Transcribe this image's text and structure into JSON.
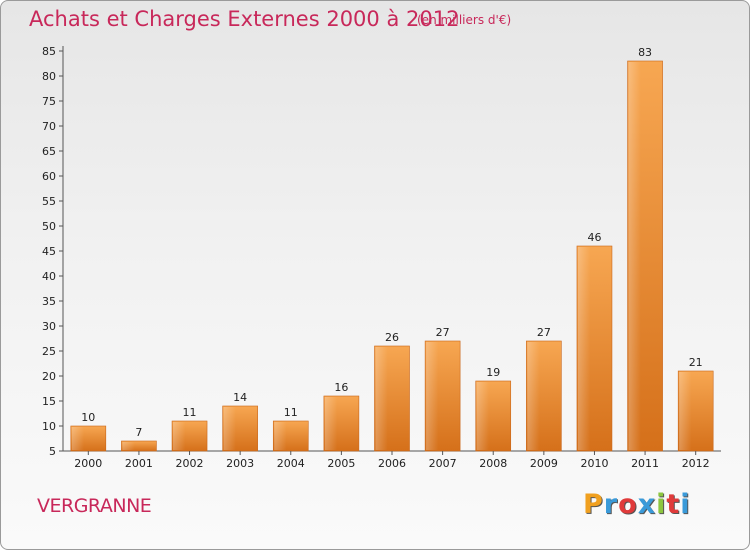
{
  "chart_data": {
    "type": "bar",
    "title": "Achats et Charges Externes 2000 à 2012",
    "unit_note": "(en milliers d'€)",
    "categories": [
      "2000",
      "2001",
      "2002",
      "2003",
      "2004",
      "2005",
      "2006",
      "2007",
      "2008",
      "2009",
      "2010",
      "2011",
      "2012"
    ],
    "values": [
      10,
      7,
      11,
      14,
      11,
      16,
      26,
      27,
      19,
      27,
      46,
      83,
      21
    ],
    "ylim": [
      5,
      85
    ],
    "yticks": [
      5,
      10,
      15,
      20,
      25,
      30,
      35,
      40,
      45,
      50,
      55,
      60,
      65,
      70,
      75,
      80,
      85
    ],
    "grid": false,
    "bar_color": "#e8862a"
  },
  "commune": "VERGRANNE",
  "logo": {
    "letters": [
      "P",
      "r",
      "o",
      "x",
      "i",
      "t",
      "i"
    ],
    "colors": [
      "#f0a020",
      "#3a9ad9",
      "#e03a3a",
      "#3a9ad9",
      "#8cc63f",
      "#e03a3a",
      "#3a9ad9"
    ]
  }
}
